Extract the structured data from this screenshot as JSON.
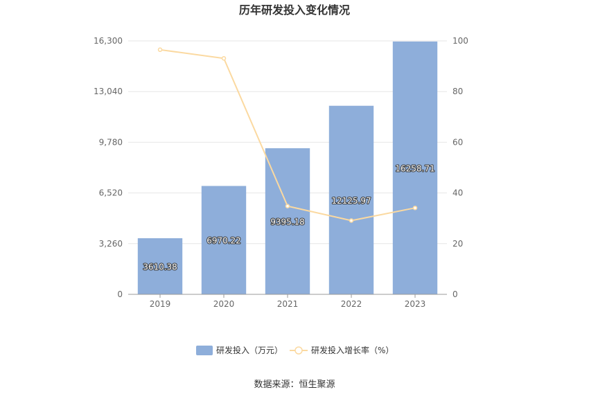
{
  "chart_data": {
    "type": "bar",
    "title": "历年研发投入变化情况",
    "categories": [
      "2019",
      "2020",
      "2021",
      "2022",
      "2023"
    ],
    "series": [
      {
        "name": "研发投入（万元）",
        "type": "bar",
        "axis": "left",
        "values": [
          3610.38,
          6970.22,
          9395.18,
          12125.97,
          16258.71
        ],
        "labels": [
          "3610.38",
          "6970.22",
          "9395.18",
          "12125.97",
          "16258.71"
        ]
      },
      {
        "name": "研发投入增长率（%）",
        "type": "line",
        "axis": "right",
        "values": [
          96.5,
          93.1,
          34.8,
          29.1,
          34.1
        ]
      }
    ],
    "y_left": {
      "ylim": [
        0,
        16300
      ],
      "ticks": [
        "0",
        "3,260",
        "6,520",
        "9,780",
        "13,040",
        "16,300"
      ]
    },
    "y_right": {
      "ylim": [
        0,
        100
      ],
      "ticks": [
        "0",
        "20",
        "40",
        "60",
        "80",
        "100"
      ]
    },
    "grid": true,
    "legend": "bottom",
    "colors": {
      "bar": "#8EAEDA",
      "line": "#FBD9A0",
      "grid": "#E6E6E6",
      "axis": "#999999"
    }
  },
  "source": "数据来源：恒生聚源"
}
